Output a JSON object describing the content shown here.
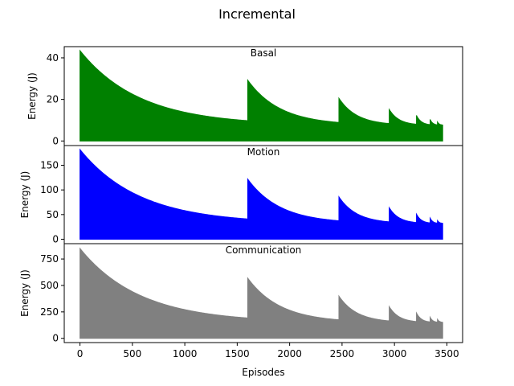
{
  "figure_title": "Incremental",
  "chart_data": [
    {
      "type": "area",
      "title": "Basal",
      "xlabel": "",
      "ylabel": "Energy (J)",
      "color": "#008000",
      "xlim": [
        -150,
        3650
      ],
      "ylim": [
        -2.2,
        45.4
      ],
      "yticks": [
        0,
        20,
        40
      ],
      "xticks": [],
      "task_starts": [
        0,
        1600,
        2470,
        2950,
        3210,
        3340,
        3410
      ],
      "series": [
        {
          "x": [
            0,
            1600,
            1600,
            2470,
            2470,
            2950,
            2950,
            3210,
            3210,
            3340,
            3340,
            3410,
            3410,
            3460
          ],
          "values": [
            43.5,
            7.6,
            29.3,
            7.6,
            20.6,
            7.6,
            15.2,
            7.6,
            12.3,
            7.6,
            10.4,
            7.6,
            9.2,
            7.6
          ]
        }
      ]
    },
    {
      "type": "area",
      "title": "Motion",
      "xlabel": "",
      "ylabel": "Energy (J)",
      "color": "#0000ff",
      "xlim": [
        -150,
        3650
      ],
      "ylim": [
        -9,
        190
      ],
      "yticks": [
        0,
        50,
        100,
        150
      ],
      "xticks": [],
      "task_starts": [
        0,
        1600,
        2470,
        2950,
        3210,
        3340,
        3410
      ],
      "series": [
        {
          "x": [
            0,
            1600,
            1600,
            2470,
            2470,
            2950,
            2950,
            3210,
            3210,
            3340,
            3340,
            3410,
            3410,
            3460
          ],
          "values": [
            182,
            32,
            122,
            32,
            86,
            32,
            64,
            32,
            51,
            32,
            43,
            32,
            38,
            32
          ]
        }
      ]
    },
    {
      "type": "area",
      "title": "Communication",
      "xlabel": "Episodes",
      "ylabel": "Energy (J)",
      "color": "#808080",
      "xlim": [
        -150,
        3650
      ],
      "ylim": [
        -40,
        895
      ],
      "yticks": [
        0,
        250,
        500,
        750
      ],
      "xticks": [
        0,
        500,
        1000,
        1500,
        2000,
        2500,
        3000,
        3500
      ],
      "task_starts": [
        0,
        1600,
        2470,
        2950,
        3210,
        3340,
        3410
      ],
      "series": [
        {
          "x": [
            0,
            1600,
            1600,
            2470,
            2470,
            2950,
            2950,
            3210,
            3210,
            3340,
            3340,
            3410,
            3410,
            3460
          ],
          "values": [
            850,
            150,
            570,
            150,
            400,
            150,
            300,
            150,
            240,
            150,
            200,
            150,
            180,
            150
          ]
        }
      ]
    }
  ]
}
